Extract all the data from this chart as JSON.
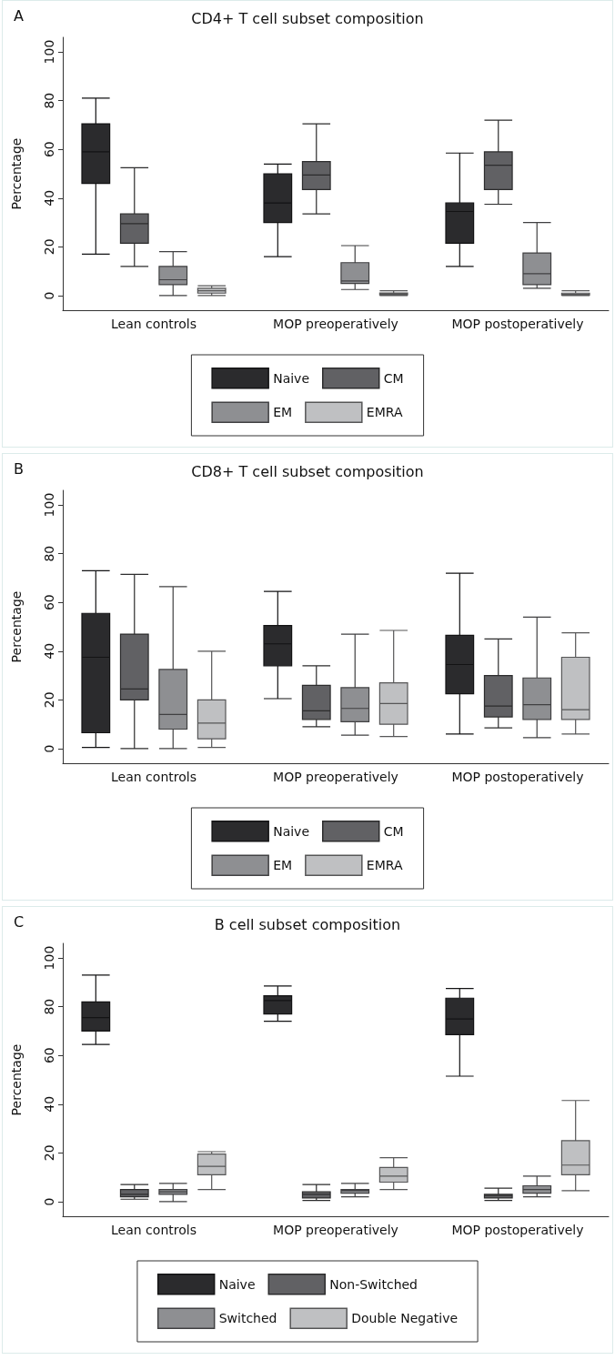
{
  "chart_data": [
    {
      "type": "box",
      "title": "CD4+ T cell subset composition",
      "ylabel": "Percentage",
      "annotations": [
        "A"
      ],
      "categories": [
        "Lean controls",
        "MOP preoperatively",
        "MOP postoperatively"
      ],
      "ylim": [
        -6,
        106
      ],
      "yticks": [
        0,
        20,
        40,
        60,
        80,
        100
      ],
      "grid": false,
      "legend": "bottom",
      "series": [
        {
          "name": "Naive",
          "color": "#2b2b2d",
          "boxes": [
            {
              "low": 17,
              "q1": 46,
              "median": 59,
              "q3": 70.5,
              "high": 81
            },
            {
              "low": 16,
              "q1": 30,
              "median": 38,
              "q3": 50,
              "high": 54
            },
            {
              "low": 12,
              "q1": 21.5,
              "median": 34.5,
              "q3": 38,
              "high": 58.5
            }
          ]
        },
        {
          "name": "CM",
          "color": "#616164",
          "boxes": [
            {
              "low": 12,
              "q1": 21.5,
              "median": 29.5,
              "q3": 33.5,
              "high": 52.5
            },
            {
              "low": 33.5,
              "q1": 43.5,
              "median": 49.5,
              "q3": 55,
              "high": 70.5
            },
            {
              "low": 37.5,
              "q1": 43.5,
              "median": 53.5,
              "q3": 59,
              "high": 72
            }
          ]
        },
        {
          "name": "EM",
          "color": "#8e8f92",
          "boxes": [
            {
              "low": 0,
              "q1": 4.5,
              "median": 6.5,
              "q3": 12,
              "high": 18
            },
            {
              "low": 2.5,
              "q1": 5,
              "median": 6,
              "q3": 13.5,
              "high": 20.5
            },
            {
              "low": 3,
              "q1": 4.5,
              "median": 9,
              "q3": 17.5,
              "high": 30
            }
          ]
        },
        {
          "name": "EMRA",
          "color": "#bfc0c2",
          "boxes": [
            {
              "low": 0,
              "q1": 1,
              "median": 2,
              "q3": 3,
              "high": 4
            },
            {
              "low": 0,
              "q1": 0.3,
              "median": 0.8,
              "q3": 1.1,
              "high": 2
            },
            {
              "low": 0,
              "q1": 0.2,
              "median": 0.5,
              "q3": 1,
              "high": 2
            }
          ]
        }
      ]
    },
    {
      "type": "box",
      "title": "CD8+ T cell subset composition",
      "ylabel": "Percentage",
      "annotations": [
        "B"
      ],
      "categories": [
        "Lean controls",
        "MOP preoperatively",
        "MOP postoperatively"
      ],
      "ylim": [
        -6,
        106
      ],
      "yticks": [
        0,
        20,
        40,
        60,
        80,
        100
      ],
      "grid": false,
      "legend": "bottom",
      "series": [
        {
          "name": "Naive",
          "color": "#2b2b2d",
          "boxes": [
            {
              "low": 0.5,
              "q1": 6.5,
              "median": 37.5,
              "q3": 55.5,
              "high": 73
            },
            {
              "low": 20.5,
              "q1": 34,
              "median": 43,
              "q3": 50.5,
              "high": 64.5
            },
            {
              "low": 6,
              "q1": 22.5,
              "median": 34.5,
              "q3": 46.5,
              "high": 72
            }
          ]
        },
        {
          "name": "CM",
          "color": "#616164",
          "boxes": [
            {
              "low": 0,
              "q1": 20,
              "median": 24.5,
              "q3": 47,
              "high": 71.5
            },
            {
              "low": 9,
              "q1": 12,
              "median": 15.5,
              "q3": 26,
              "high": 34
            },
            {
              "low": 8.5,
              "q1": 13,
              "median": 17.5,
              "q3": 30,
              "high": 45
            }
          ]
        },
        {
          "name": "EM",
          "color": "#8e8f92",
          "boxes": [
            {
              "low": 0,
              "q1": 8,
              "median": 14,
              "q3": 32.5,
              "high": 66.5
            },
            {
              "low": 5.5,
              "q1": 11,
              "median": 16.5,
              "q3": 25,
              "high": 47
            },
            {
              "low": 4.5,
              "q1": 12,
              "median": 18,
              "q3": 29,
              "high": 54
            }
          ]
        },
        {
          "name": "EMRA",
          "color": "#bfc0c2",
          "boxes": [
            {
              "low": 0.5,
              "q1": 4,
              "median": 10.5,
              "q3": 20,
              "high": 40
            },
            {
              "low": 5,
              "q1": 10,
              "median": 18.5,
              "q3": 27,
              "high": 48.5
            },
            {
              "low": 6,
              "q1": 12,
              "median": 16,
              "q3": 37.5,
              "high": 47.5
            }
          ]
        }
      ]
    },
    {
      "type": "box",
      "title": "B cell subset composition",
      "ylabel": "Percentage",
      "annotations": [
        "C"
      ],
      "categories": [
        "Lean controls",
        "MOP preoperatively",
        "MOP postoperatively"
      ],
      "ylim": [
        -6,
        106
      ],
      "yticks": [
        0,
        20,
        40,
        60,
        80,
        100
      ],
      "grid": false,
      "legend": "bottom",
      "series": [
        {
          "name": "Naive",
          "color": "#2b2b2d",
          "boxes": [
            {
              "low": 64.5,
              "q1": 70,
              "median": 75.5,
              "q3": 82,
              "high": 93
            },
            {
              "low": 74,
              "q1": 77,
              "median": 82.5,
              "q3": 84.5,
              "high": 88.5
            },
            {
              "low": 51.5,
              "q1": 68.5,
              "median": 75,
              "q3": 83.5,
              "high": 87.5
            }
          ]
        },
        {
          "name": "Non-Switched",
          "color": "#616164",
          "boxes": [
            {
              "low": 1,
              "q1": 2,
              "median": 3,
              "q3": 5,
              "high": 7
            },
            {
              "low": 0.5,
              "q1": 1.5,
              "median": 3,
              "q3": 4,
              "high": 7
            },
            {
              "low": 0.5,
              "q1": 1.5,
              "median": 2.5,
              "q3": 3,
              "high": 5.5
            }
          ]
        },
        {
          "name": "Switched",
          "color": "#8e8f92",
          "boxes": [
            {
              "low": 0,
              "q1": 3,
              "median": 4,
              "q3": 5,
              "high": 7.5
            },
            {
              "low": 2,
              "q1": 3.5,
              "median": 4.5,
              "q3": 5,
              "high": 7.5
            },
            {
              "low": 2,
              "q1": 3.5,
              "median": 5,
              "q3": 6.5,
              "high": 10.5
            }
          ]
        },
        {
          "name": "Double Negative",
          "color": "#bfc0c2",
          "boxes": [
            {
              "low": 5,
              "q1": 11,
              "median": 14.5,
              "q3": 19.5,
              "high": 20.5
            },
            {
              "low": 5,
              "q1": 8,
              "median": 10.5,
              "q3": 14,
              "high": 18
            },
            {
              "low": 4.5,
              "q1": 11,
              "median": 15,
              "q3": 25,
              "high": 41.5
            }
          ]
        }
      ]
    }
  ]
}
